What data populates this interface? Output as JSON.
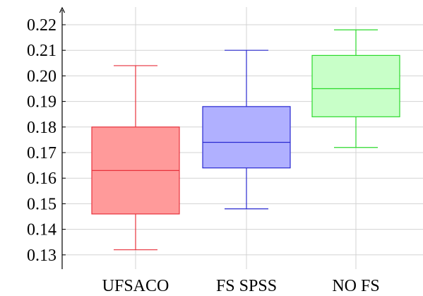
{
  "chart_data": {
    "type": "boxplot",
    "title": "",
    "xlabel": "",
    "ylabel": "",
    "ylim": [
      0.125,
      0.225
    ],
    "yticks": [
      "0.13",
      "0.14",
      "0.15",
      "0.16",
      "0.17",
      "0.18",
      "0.19",
      "0.20",
      "0.21",
      "0.22"
    ],
    "grid": true,
    "categories": [
      "UFSACO",
      "FS SPSS",
      "NO FS"
    ],
    "boxes": [
      {
        "category": "UFSACO",
        "whisker_low": 0.132,
        "q1": 0.146,
        "median": 0.163,
        "q3": 0.18,
        "whisker_high": 0.204,
        "stroke": "#e8323c",
        "fill": "#ff9a9a"
      },
      {
        "category": "FS SPSS",
        "whisker_low": 0.148,
        "q1": 0.164,
        "median": 0.174,
        "q3": 0.188,
        "whisker_high": 0.21,
        "stroke": "#2a2ad0",
        "fill": "#b0b0ff"
      },
      {
        "category": "NO FS",
        "whisker_low": 0.172,
        "q1": 0.184,
        "median": 0.195,
        "q3": 0.208,
        "whisker_high": 0.218,
        "stroke": "#2bd92b",
        "fill": "#c8ffc8"
      }
    ]
  }
}
